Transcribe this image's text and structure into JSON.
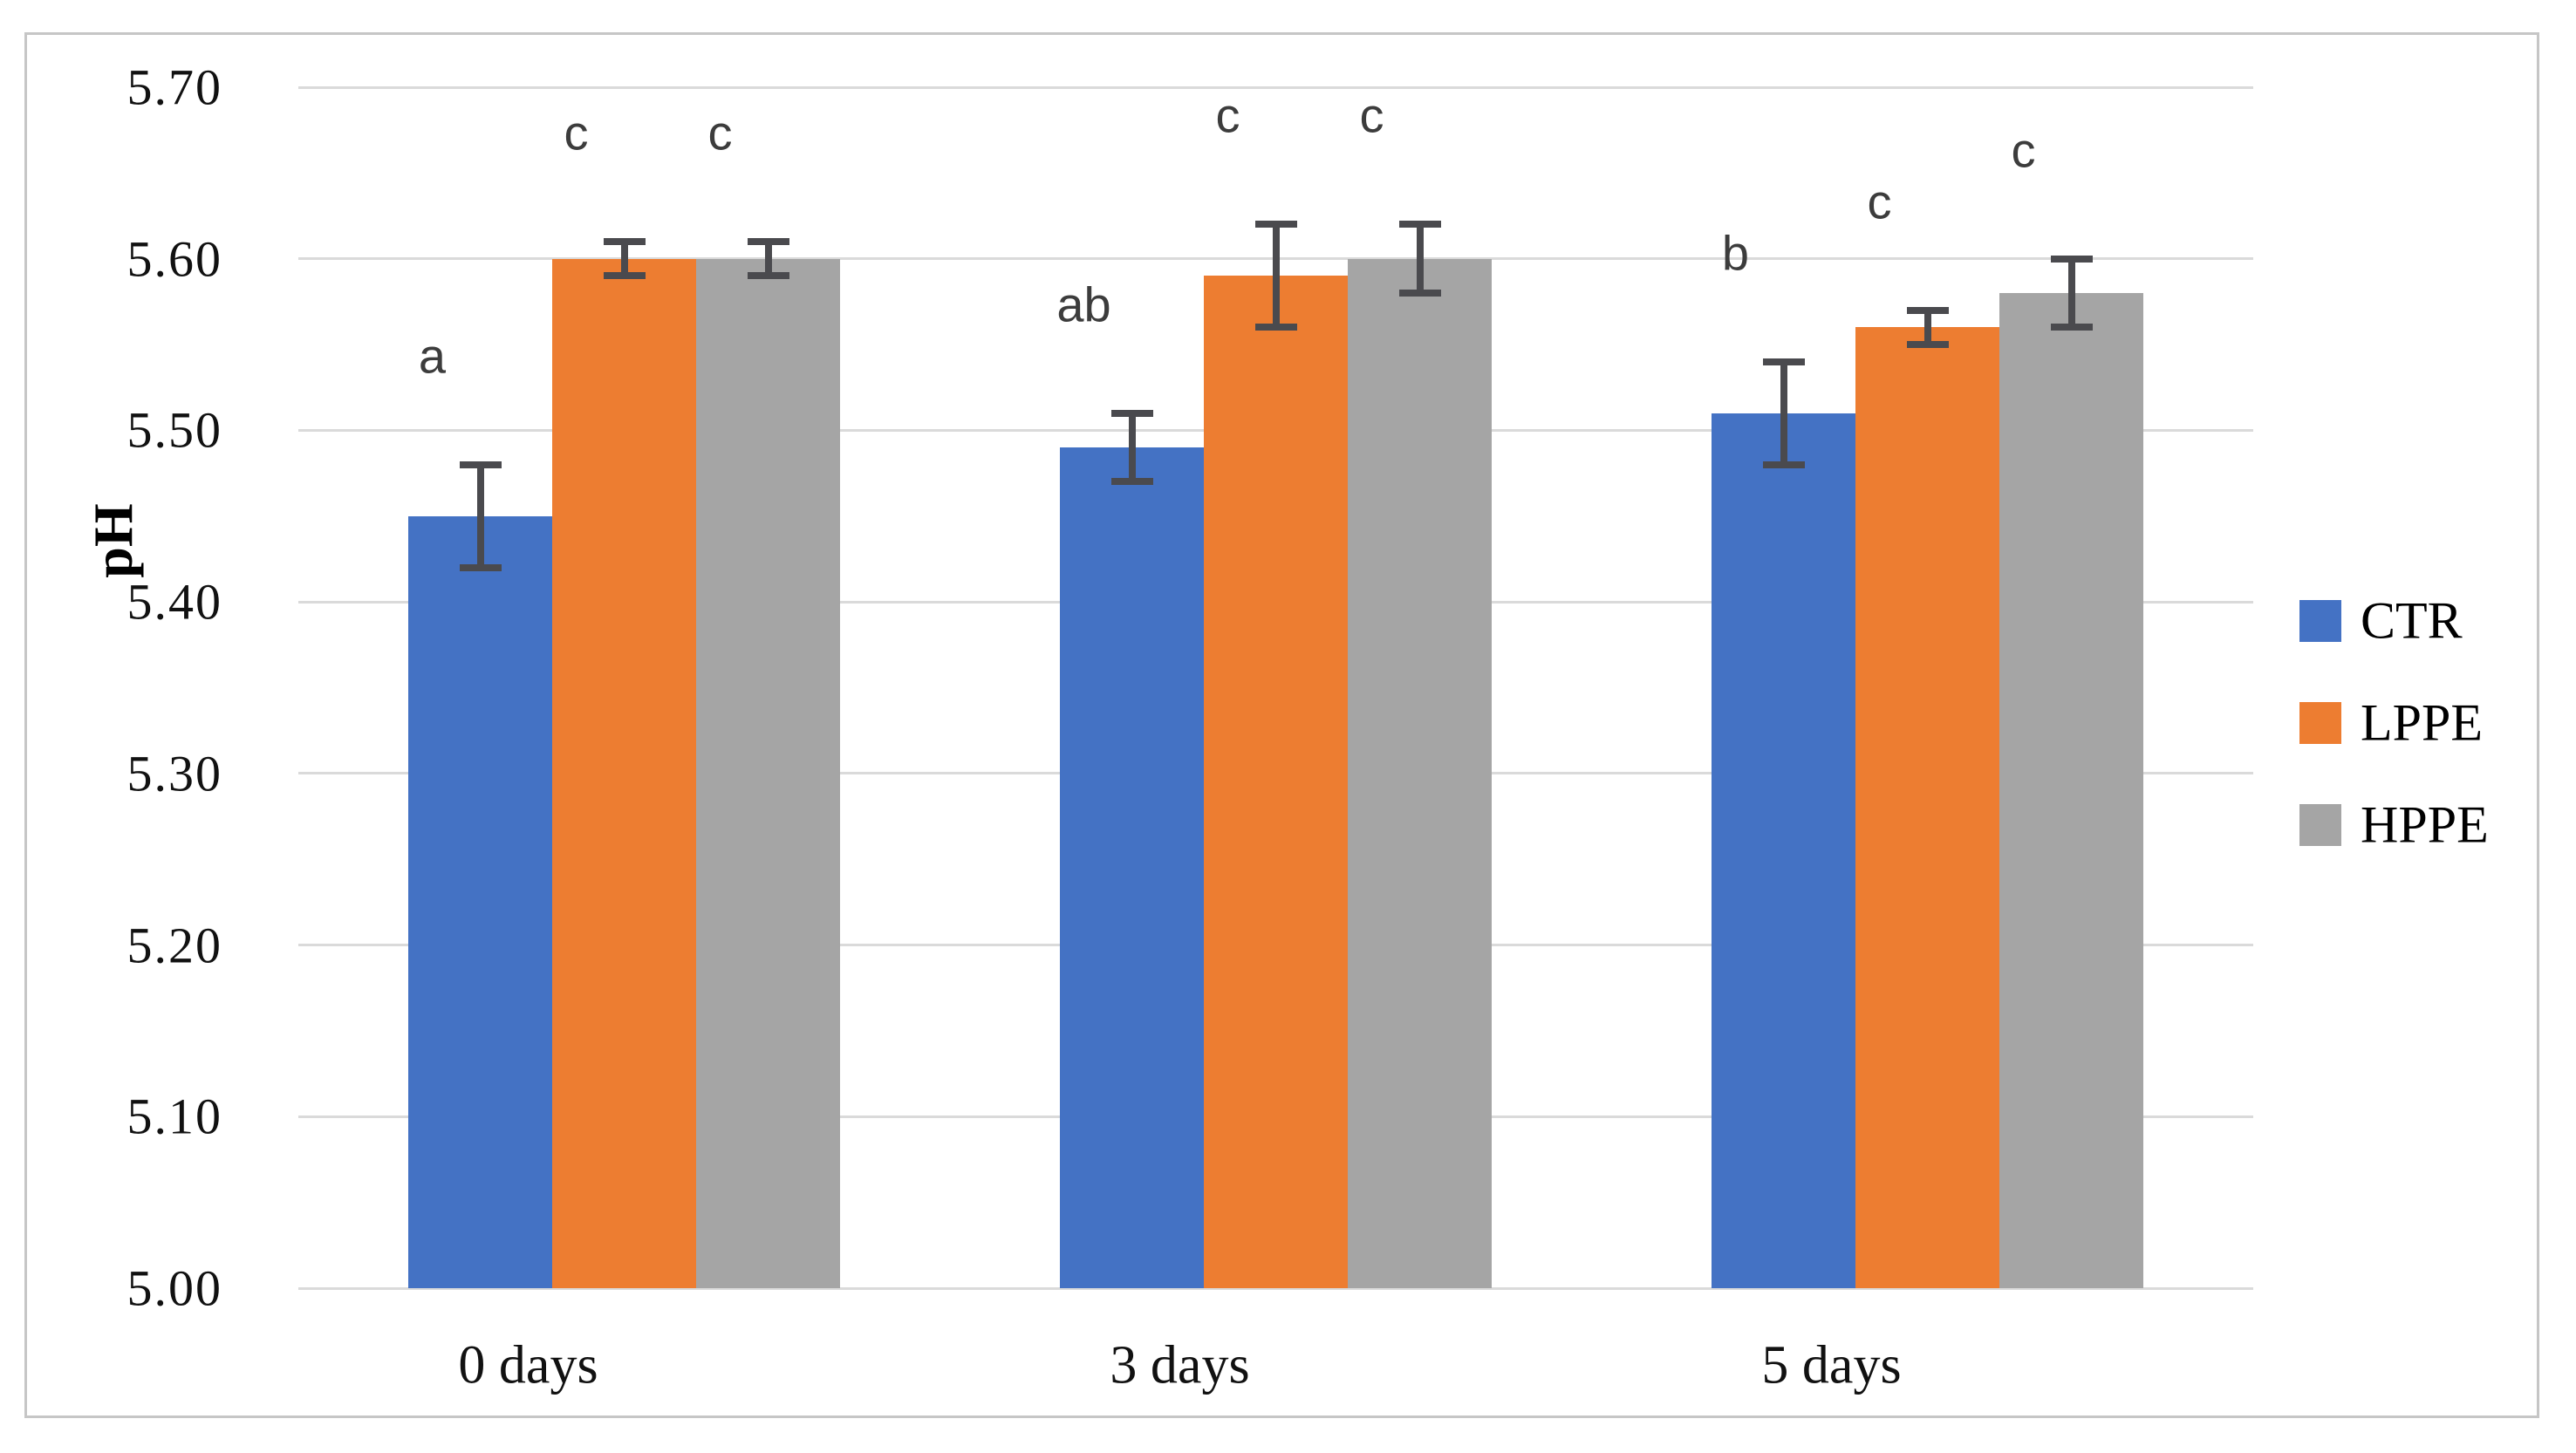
{
  "chart_data": {
    "type": "bar",
    "title": "",
    "ylabel": "pH",
    "xlabel": "",
    "categories": [
      "0 days",
      "3 days",
      "5 days"
    ],
    "series": [
      {
        "name": "CTR",
        "color": "#4472C4",
        "values": [
          5.45,
          5.49,
          5.51
        ],
        "errors": [
          0.03,
          0.02,
          0.03
        ],
        "significance_letters": [
          "a",
          "ab",
          "b"
        ]
      },
      {
        "name": "LPPE",
        "color": "#ED7D31",
        "values": [
          5.6,
          5.59,
          5.56
        ],
        "errors": [
          0.01,
          0.03,
          0.01
        ],
        "significance_letters": [
          "c",
          "c",
          "c"
        ]
      },
      {
        "name": "HPPE",
        "color": "#A5A5A5",
        "values": [
          5.6,
          5.6,
          5.58
        ],
        "errors": [
          0.01,
          0.02,
          0.02
        ],
        "significance_letters": [
          "c",
          "c",
          "c"
        ]
      }
    ],
    "ylim": [
      5.0,
      5.7
    ],
    "ytick_step": 0.1,
    "ytick_labels": [
      "5.00",
      "5.10",
      "5.20",
      "5.30",
      "5.40",
      "5.50",
      "5.60",
      "5.70"
    ],
    "grid": true,
    "legend": {
      "position": "right",
      "entries": [
        "CTR",
        "LPPE",
        "HPPE"
      ]
    },
    "colors": {
      "error_bar": "#4A4A4E",
      "gridline": "#DADADA",
      "frame_border": "#C6C6C6",
      "letter": "#3C3C3C",
      "text": "#111111"
    }
  }
}
